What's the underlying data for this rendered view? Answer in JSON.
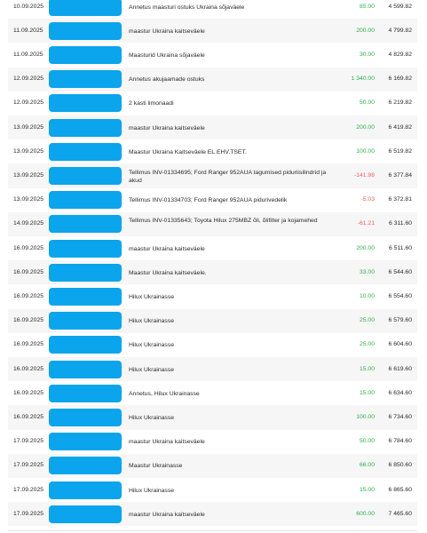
{
  "transactions": [
    {
      "date": "10.09.2025",
      "description": "Annetus maasturi ostuks Ukraina sõjaväele",
      "amount": "85.00",
      "type": "pos",
      "balance": "4 599.82"
    },
    {
      "date": "11.09.2025",
      "description": "maastur Ukraina kaitseväele",
      "amount": "200.00",
      "type": "pos",
      "balance": "4 799.82"
    },
    {
      "date": "11.09.2025",
      "description": "Maasturid Ukraina sõjaväele",
      "amount": "30.00",
      "type": "pos",
      "balance": "4 829.82"
    },
    {
      "date": "12.09.2025",
      "description": "Annetus akujaamade ostuks",
      "amount": "1 340.00",
      "type": "pos",
      "balance": "6 169.82"
    },
    {
      "date": "12.09.2025",
      "description": "2 kasti limonaadi",
      "amount": "50.00",
      "type": "pos",
      "balance": "6 219.82"
    },
    {
      "date": "13.09.2025",
      "description": "maastur Ukraina kaitseväele",
      "amount": "200.00",
      "type": "pos",
      "balance": "6 419.82"
    },
    {
      "date": "13.09.2025",
      "description": "Maastur Ukraina Kaitseväele EL.EHV.TSET.",
      "amount": "100.00",
      "type": "pos",
      "balance": "6 519.82"
    },
    {
      "date": "13.09.2025",
      "description": "Tellimus INV-01334695; Ford Ranger 952AUA tagumised piduriisilindrid ja akud",
      "amount": "-141.98",
      "type": "neg",
      "balance": "6 377.84"
    },
    {
      "date": "13.09.2025",
      "description": "Tellimus INV-01334703; Ford Ranger 952AUA pidurivedelik",
      "amount": "-5.03",
      "type": "neg",
      "balance": "6 372.81"
    },
    {
      "date": "14.09.2025",
      "description": "Tellimus INV-01335643; Toyota Hilux 275MBZ õli, õlifilter ja kojamehed",
      "amount": "-61.21",
      "type": "neg",
      "balance": "6 311.60"
    },
    {
      "date": "16.09.2025",
      "description": "maastur Ukraina kaitseväele",
      "amount": "200.00",
      "type": "pos",
      "balance": "6 511.60"
    },
    {
      "date": "16.09.2025",
      "description": "Maastur Ukraina kaitseväele.",
      "amount": "33.00",
      "type": "pos",
      "balance": "6 544.60"
    },
    {
      "date": "16.09.2025",
      "description": "Hilux Ukrainasse",
      "amount": "10.00",
      "type": "pos",
      "balance": "6 554.60"
    },
    {
      "date": "16.09.2025",
      "description": "Hilux Ukrainasse",
      "amount": "25.00",
      "type": "pos",
      "balance": "6 579.60"
    },
    {
      "date": "16.09.2025",
      "description": "Hilux Ukrainasse",
      "amount": "25.00",
      "type": "pos",
      "balance": "6 604.60"
    },
    {
      "date": "16.09.2025",
      "description": "Hilux Ukrainasse",
      "amount": "15.00",
      "type": "pos",
      "balance": "6 619.60"
    },
    {
      "date": "16.09.2025",
      "description": "Annetus, Hilux Ukrainasse",
      "amount": "15.00",
      "type": "pos",
      "balance": "6 634.60"
    },
    {
      "date": "16.09.2025",
      "description": "Hilux Ukrainasse",
      "amount": "100.00",
      "type": "pos",
      "balance": "6 734.60"
    },
    {
      "date": "17.09.2025",
      "description": "maastur Ukraina kaitseväele",
      "amount": "50.00",
      "type": "pos",
      "balance": "6 784.60"
    },
    {
      "date": "17.09.2025",
      "description": "Maastur Ukrainasse",
      "amount": "66.00",
      "type": "pos",
      "balance": "6 850.60"
    },
    {
      "date": "17.09.2025",
      "description": "Hilux Ukrainasse",
      "amount": "15.00",
      "type": "pos",
      "balance": "6 865.60"
    },
    {
      "date": "17.09.2025",
      "description": "maastur Ukraina kaitseväele",
      "amount": "600.00",
      "type": "pos",
      "balance": "7 465.60"
    }
  ],
  "colors": {
    "redaction": "#0aa5ec",
    "positive_amount": "#2eaf4e",
    "negative_amount": "#ec6160",
    "alt_row": "#f6f6f6"
  }
}
